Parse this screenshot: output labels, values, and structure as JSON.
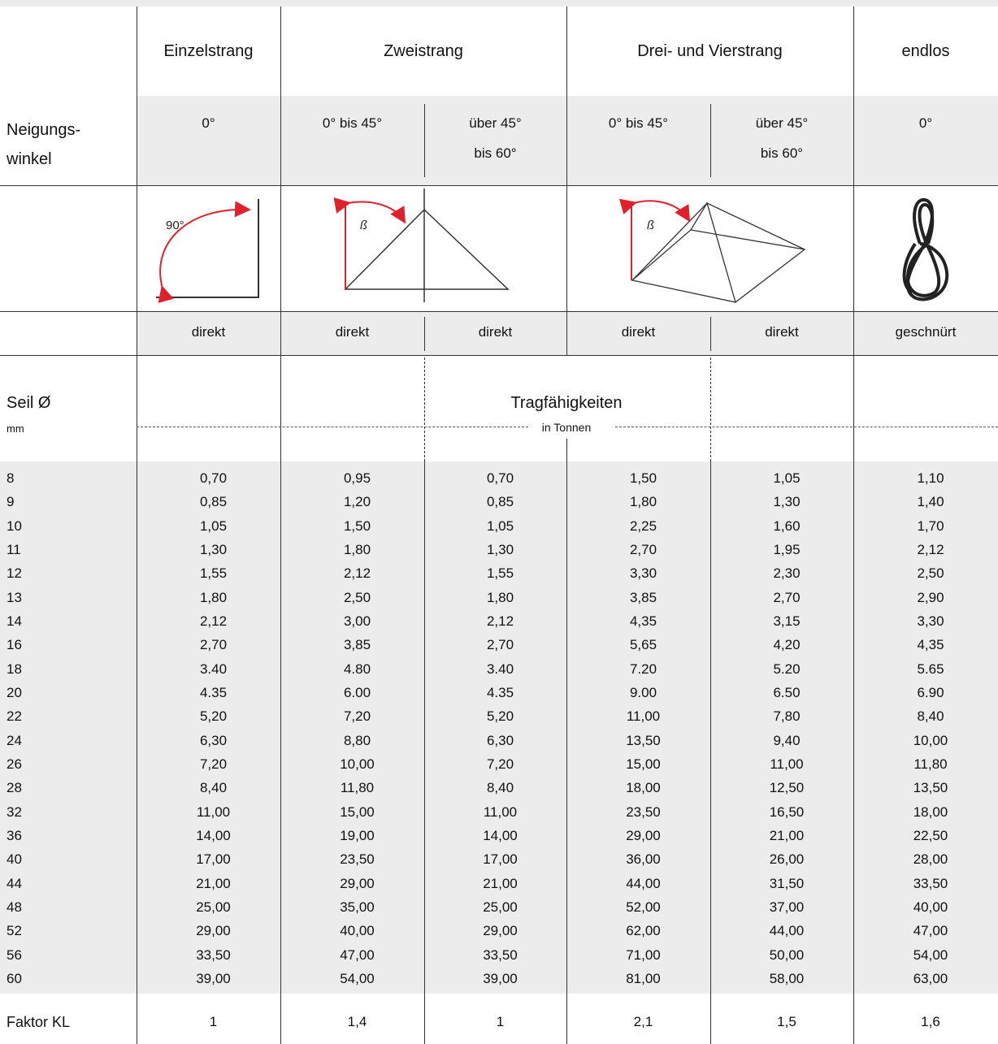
{
  "header": {
    "columns": [
      "Einzelstrang",
      "Zweistrang",
      "Drei- und Vierstrang",
      "endlos"
    ]
  },
  "angle_row": {
    "label": [
      "Neigungs-",
      "winkel"
    ],
    "cells": [
      [
        "0°"
      ],
      [
        "0° bis 45°"
      ],
      [
        "über 45°",
        "bis 60°"
      ],
      [
        "0° bis 45°"
      ],
      [
        "über 45°",
        "bis 60°"
      ],
      [
        "0°"
      ]
    ]
  },
  "diagrams": {
    "angle_label": "90°",
    "beta_labels": [
      "ß",
      "ß"
    ]
  },
  "method_row": [
    "direkt",
    "direkt",
    "direkt",
    "direkt",
    "direkt",
    "geschnürt"
  ],
  "capacity": {
    "diameter_label": "Seil Ø",
    "diameter_unit": "mm",
    "title": "Tragfähigkeiten",
    "unit": "in Tonnen"
  },
  "table": {
    "rows": [
      [
        "8",
        "0,70",
        "0,95",
        "0,70",
        "1,50",
        "1,05",
        "1,10"
      ],
      [
        "9",
        "0,85",
        "1,20",
        "0,85",
        "1,80",
        "1,30",
        "1,40"
      ],
      [
        "10",
        "1,05",
        "1,50",
        "1,05",
        "2,25",
        "1,60",
        "1,70"
      ],
      [
        "11",
        "1,30",
        "1,80",
        "1,30",
        "2,70",
        "1,95",
        "2,12"
      ],
      [
        "12",
        "1,55",
        "2,12",
        "1,55",
        "3,30",
        "2,30",
        "2,50"
      ],
      [
        "13",
        "1,80",
        "2,50",
        "1,80",
        "3,85",
        "2,70",
        "2,90"
      ],
      [
        "14",
        "2,12",
        "3,00",
        "2,12",
        "4,35",
        "3,15",
        "3,30"
      ],
      [
        "16",
        "2,70",
        "3,85",
        "2,70",
        "5,65",
        "4,20",
        "4,35"
      ],
      [
        "18",
        "3.40",
        "4.80",
        "3.40",
        "7.20",
        "5.20",
        "5.65"
      ],
      [
        "20",
        "4.35",
        "6.00",
        "4.35",
        "9.00",
        "6.50",
        "6.90"
      ],
      [
        "22",
        "5,20",
        "7,20",
        "5,20",
        "11,00",
        "7,80",
        "8,40"
      ],
      [
        "24",
        "6,30",
        "8,80",
        "6,30",
        "13,50",
        "9,40",
        "10,00"
      ],
      [
        "26",
        "7,20",
        "10,00",
        "7,20",
        "15,00",
        "11,00",
        "11,80"
      ],
      [
        "28",
        "8,40",
        "11,80",
        "8,40",
        "18,00",
        "12,50",
        "13,50"
      ],
      [
        "32",
        "11,00",
        "15,00",
        "11,00",
        "23,50",
        "16,50",
        "18,00"
      ],
      [
        "36",
        "14,00",
        "19,00",
        "14,00",
        "29,00",
        "21,00",
        "22,50"
      ],
      [
        "40",
        "17,00",
        "23,50",
        "17,00",
        "36,00",
        "26,00",
        "28,00"
      ],
      [
        "44",
        "21,00",
        "29,00",
        "21,00",
        "44,00",
        "31,50",
        "33,50"
      ],
      [
        "48",
        "25,00",
        "35,00",
        "25,00",
        "52,00",
        "37,00",
        "40,00"
      ],
      [
        "52",
        "29,00",
        "40,00",
        "29,00",
        "62,00",
        "44,00",
        "47,00"
      ],
      [
        "56",
        "33,50",
        "47,00",
        "33,50",
        "71,00",
        "50,00",
        "54,00"
      ],
      [
        "60",
        "39,00",
        "54,00",
        "39,00",
        "81,00",
        "58,00",
        "63,00"
      ]
    ]
  },
  "factor": {
    "label": "Faktor KL",
    "values": [
      "1",
      "1,4",
      "1",
      "2,1",
      "1,5",
      "1,6"
    ]
  }
}
